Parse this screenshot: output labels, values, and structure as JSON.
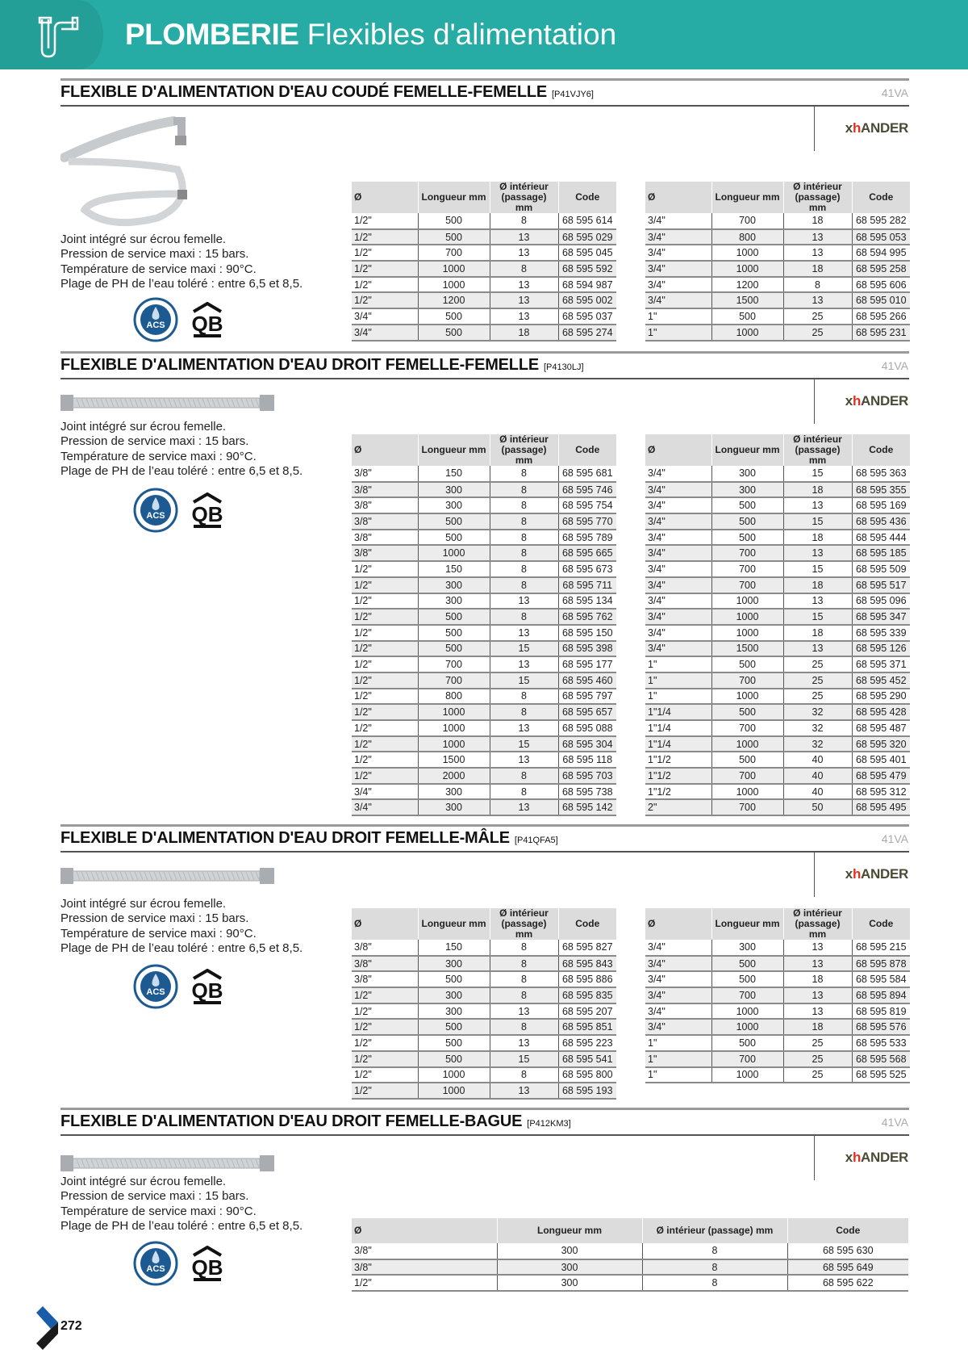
{
  "header": {
    "category": "PLOMBERIE",
    "subtitle": "Flexibles d'alimentation",
    "icon": "pipe-icon",
    "color": "#26aca4"
  },
  "brand": {
    "x": "x",
    "h": "h",
    "rest": "ANDER"
  },
  "columns4": [
    "Ø",
    "Longueur mm",
    "Ø intérieur (passage) mm",
    "Code"
  ],
  "sections": [
    {
      "title": "FLEXIBLE D'ALIMENTATION D'EAU COUDÉ FEMELLE-FEMELLE",
      "ref": "[P41VJY6]",
      "code": "41VA",
      "description": [
        "Joint intégré sur écrou femelle.",
        "Pression de service maxi : 15 bars.",
        "Température de service maxi : 90°C.",
        "Plage de PH de l’eau toléré : entre 6,5 et 8,5."
      ],
      "tables": [
        [
          [
            "1/2\"",
            "500",
            "8",
            "68 595 614"
          ],
          [
            "1/2\"",
            "500",
            "13",
            "68 595 029"
          ],
          [
            "1/2\"",
            "700",
            "13",
            "68 595 045"
          ],
          [
            "1/2\"",
            "1000",
            "8",
            "68 595 592"
          ],
          [
            "1/2\"",
            "1000",
            "13",
            "68 594 987"
          ],
          [
            "1/2\"",
            "1200",
            "13",
            "68 595 002"
          ],
          [
            "3/4\"",
            "500",
            "13",
            "68 595 037"
          ],
          [
            "3/4\"",
            "500",
            "18",
            "68 595 274"
          ]
        ],
        [
          [
            "3/4\"",
            "700",
            "18",
            "68 595 282"
          ],
          [
            "3/4\"",
            "800",
            "13",
            "68 595 053"
          ],
          [
            "3/4\"",
            "1000",
            "13",
            "68 594 995"
          ],
          [
            "3/4\"",
            "1000",
            "18",
            "68 595 258"
          ],
          [
            "3/4\"",
            "1200",
            "8",
            "68 595 606"
          ],
          [
            "3/4\"",
            "1500",
            "13",
            "68 595 010"
          ],
          [
            "1\"",
            "500",
            "25",
            "68 595 266"
          ],
          [
            "1\"",
            "1000",
            "25",
            "68 595 231"
          ]
        ]
      ]
    },
    {
      "title": "FLEXIBLE D'ALIMENTATION D'EAU DROIT FEMELLE-FEMELLE",
      "ref": "[P4130LJ]",
      "code": "41VA",
      "description": [
        "Joint intégré sur écrou femelle.",
        "Pression de service maxi : 15 bars.",
        "Température de service maxi : 90°C.",
        "Plage de PH de l’eau toléré : entre 6,5 et 8,5."
      ],
      "tables": [
        [
          [
            "3/8\"",
            "150",
            "8",
            "68 595 681"
          ],
          [
            "3/8\"",
            "300",
            "8",
            "68 595 746"
          ],
          [
            "3/8\"",
            "300",
            "8",
            "68 595 754"
          ],
          [
            "3/8\"",
            "500",
            "8",
            "68 595 770"
          ],
          [
            "3/8\"",
            "500",
            "8",
            "68 595 789"
          ],
          [
            "3/8\"",
            "1000",
            "8",
            "68 595 665"
          ],
          [
            "1/2\"",
            "150",
            "8",
            "68 595 673"
          ],
          [
            "1/2\"",
            "300",
            "8",
            "68 595 711"
          ],
          [
            "1/2\"",
            "300",
            "13",
            "68 595 134"
          ],
          [
            "1/2\"",
            "500",
            "8",
            "68 595 762"
          ],
          [
            "1/2\"",
            "500",
            "13",
            "68 595 150"
          ],
          [
            "1/2\"",
            "500",
            "15",
            "68 595 398"
          ],
          [
            "1/2\"",
            "700",
            "13",
            "68 595 177"
          ],
          [
            "1/2\"",
            "700",
            "15",
            "68 595 460"
          ],
          [
            "1/2\"",
            "800",
            "8",
            "68 595 797"
          ],
          [
            "1/2\"",
            "1000",
            "8",
            "68 595 657"
          ],
          [
            "1/2\"",
            "1000",
            "13",
            "68 595 088"
          ],
          [
            "1/2\"",
            "1000",
            "15",
            "68 595 304"
          ],
          [
            "1/2\"",
            "1500",
            "13",
            "68 595 118"
          ],
          [
            "1/2\"",
            "2000",
            "8",
            "68 595 703"
          ],
          [
            "3/4\"",
            "300",
            "8",
            "68 595 738"
          ],
          [
            "3/4\"",
            "300",
            "13",
            "68 595 142"
          ]
        ],
        [
          [
            "3/4\"",
            "300",
            "15",
            "68 595 363"
          ],
          [
            "3/4\"",
            "300",
            "18",
            "68 595 355"
          ],
          [
            "3/4\"",
            "500",
            "13",
            "68 595 169"
          ],
          [
            "3/4\"",
            "500",
            "15",
            "68 595 436"
          ],
          [
            "3/4\"",
            "500",
            "18",
            "68 595 444"
          ],
          [
            "3/4\"",
            "700",
            "13",
            "68 595 185"
          ],
          [
            "3/4\"",
            "700",
            "15",
            "68 595 509"
          ],
          [
            "3/4\"",
            "700",
            "18",
            "68 595 517"
          ],
          [
            "3/4\"",
            "1000",
            "13",
            "68 595 096"
          ],
          [
            "3/4\"",
            "1000",
            "15",
            "68 595 347"
          ],
          [
            "3/4\"",
            "1000",
            "18",
            "68 595 339"
          ],
          [
            "3/4\"",
            "1500",
            "13",
            "68 595 126"
          ],
          [
            "1\"",
            "500",
            "25",
            "68 595 371"
          ],
          [
            "1\"",
            "700",
            "25",
            "68 595 452"
          ],
          [
            "1\"",
            "1000",
            "25",
            "68 595 290"
          ],
          [
            "1\"1/4",
            "500",
            "32",
            "68 595 428"
          ],
          [
            "1\"1/4",
            "700",
            "32",
            "68 595 487"
          ],
          [
            "1\"1/4",
            "1000",
            "32",
            "68 595 320"
          ],
          [
            "1\"1/2",
            "500",
            "40",
            "68 595 401"
          ],
          [
            "1\"1/2",
            "700",
            "40",
            "68 595 479"
          ],
          [
            "1\"1/2",
            "1000",
            "40",
            "68 595 312"
          ],
          [
            "2\"",
            "700",
            "50",
            "68 595 495"
          ]
        ]
      ]
    },
    {
      "title": "FLEXIBLE D'ALIMENTATION D'EAU DROIT FEMELLE-MÂLE",
      "ref": "[P41QFA5]",
      "code": "41VA",
      "description": [
        "Joint intégré sur écrou femelle.",
        "Pression de service maxi : 15 bars.",
        "Température de service maxi : 90°C.",
        "Plage de PH de l’eau toléré : entre 6,5 et 8,5."
      ],
      "tables": [
        [
          [
            "3/8\"",
            "150",
            "8",
            "68 595 827"
          ],
          [
            "3/8\"",
            "300",
            "8",
            "68 595 843"
          ],
          [
            "3/8\"",
            "500",
            "8",
            "68 595 886"
          ],
          [
            "1/2\"",
            "300",
            "8",
            "68 595 835"
          ],
          [
            "1/2\"",
            "300",
            "13",
            "68 595 207"
          ],
          [
            "1/2\"",
            "500",
            "8",
            "68 595 851"
          ],
          [
            "1/2\"",
            "500",
            "13",
            "68 595 223"
          ],
          [
            "1/2\"",
            "500",
            "15",
            "68 595 541"
          ],
          [
            "1/2\"",
            "1000",
            "8",
            "68 595 800"
          ],
          [
            "1/2\"",
            "1000",
            "13",
            "68 595 193"
          ]
        ],
        [
          [
            "3/4\"",
            "300",
            "13",
            "68 595 215"
          ],
          [
            "3/4\"",
            "500",
            "13",
            "68 595 878"
          ],
          [
            "3/4\"",
            "500",
            "18",
            "68 595 584"
          ],
          [
            "3/4\"",
            "700",
            "13",
            "68 595 894"
          ],
          [
            "3/4\"",
            "1000",
            "13",
            "68 595 819"
          ],
          [
            "3/4\"",
            "1000",
            "18",
            "68 595 576"
          ],
          [
            "1\"",
            "500",
            "25",
            "68 595 533"
          ],
          [
            "1\"",
            "700",
            "25",
            "68 595 568"
          ],
          [
            "1\"",
            "1000",
            "25",
            "68 595 525"
          ]
        ]
      ]
    },
    {
      "title": "FLEXIBLE D'ALIMENTATION D'EAU DROIT FEMELLE-BAGUE",
      "ref": "[P412KM3]",
      "code": "41VA",
      "description": [
        "Joint intégré sur écrou femelle.",
        "Pression de service maxi : 15 bars.",
        "Température de service maxi : 90°C.",
        "Plage de PH de l’eau toléré : entre 6,5 et 8,5."
      ],
      "tables": [
        [
          [
            "3/8\"",
            "300",
            "8",
            "68 595 630"
          ],
          [
            "3/8\"",
            "300",
            "8",
            "68 595 649"
          ],
          [
            "1/2\"",
            "300",
            "8",
            "68 595 622"
          ]
        ]
      ]
    }
  ],
  "certifications": {
    "acs": "ACS",
    "qb": "QB"
  },
  "page_number": "272"
}
